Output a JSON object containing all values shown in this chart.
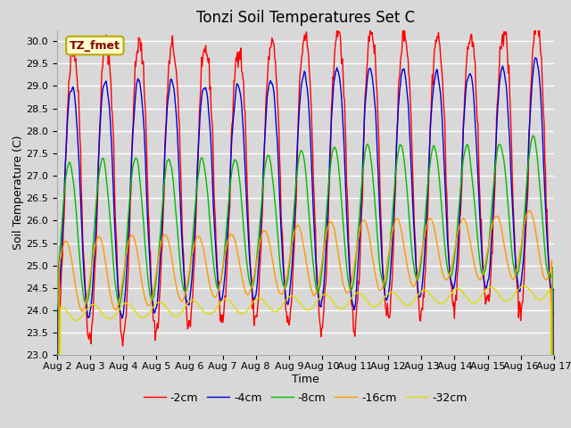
{
  "title": "Tonzi Soil Temperatures Set C",
  "xlabel": "Time",
  "ylabel": "Soil Temperature (C)",
  "annotation": "TZ_fmet",
  "ylim": [
    23.0,
    30.25
  ],
  "yticks": [
    23.0,
    23.5,
    24.0,
    24.5,
    25.0,
    25.5,
    26.0,
    26.5,
    27.0,
    27.5,
    28.0,
    28.5,
    29.0,
    29.5,
    30.0
  ],
  "x_tick_labels": [
    "Aug 2",
    "Aug 3",
    "Aug 4",
    "Aug 5",
    "Aug 6",
    "Aug 7",
    "Aug 8",
    "Aug 9",
    "Aug 10",
    "Aug 11",
    "Aug 12",
    "Aug 13",
    "Aug 14",
    "Aug 15",
    "Aug 16",
    "Aug 17"
  ],
  "series_labels": [
    "-2cm",
    "-4cm",
    "-8cm",
    "-16cm",
    "-32cm"
  ],
  "series_colors": [
    "#ff0000",
    "#0000dd",
    "#00bb00",
    "#ff9900",
    "#dddd00"
  ],
  "bg_color": "#d8d8d8",
  "grid_color": "#ffffff",
  "title_fontsize": 12,
  "axis_label_fontsize": 9,
  "tick_fontsize": 8,
  "legend_fontsize": 9,
  "annotation_bg": "#ffffcc",
  "annotation_border": "#bbaa00",
  "days": 15,
  "n_points": 720
}
